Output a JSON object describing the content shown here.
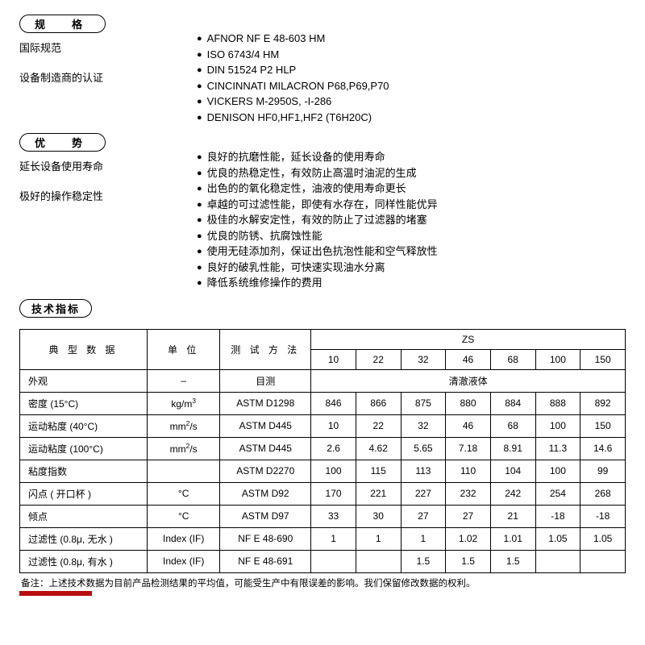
{
  "sections": {
    "spec": {
      "title": "规　格",
      "leftLabels": [
        "国际规范",
        "设备制造商的认证"
      ],
      "items": [
        "AFNOR NF E 48-603 HM",
        "ISO 6743/4 HM",
        "DIN 51524 P2 HLP",
        "CINCINNATI MILACRON P68,P69,P70",
        "VICKERS M-2950S, -I-286",
        "DENISON HF0,HF1,HF2 (T6H20C)"
      ]
    },
    "adv": {
      "title": "优　势",
      "leftLabels": [
        "延长设备使用寿命",
        "极好的操作稳定性"
      ],
      "items": [
        "良好的抗磨性能，延长设备的使用寿命",
        "优良的热稳定性，有效防止高温时油泥的生成",
        "出色的的氧化稳定性，油液的使用寿命更长",
        "卓越的可过滤性能，即使有水存在，同样性能优异",
        "极佳的水解安定性，有效的防止了过滤器的堵塞",
        "优良的防锈、抗腐蚀性能",
        "使用无硅添加剂，保证出色抗泡性能和空气释放性",
        "良好的破乳性能，可快速实现油水分离",
        "降低系统维修操作的费用"
      ]
    },
    "tech": {
      "title": "技术指标"
    }
  },
  "table": {
    "groupHeader": "ZS",
    "header": {
      "c1": "典 型 数 据",
      "c2": "单 位",
      "c3": "测 试 方 法",
      "grades": [
        "10",
        "22",
        "32",
        "46",
        "68",
        "100",
        "150"
      ]
    },
    "rows": [
      {
        "name": "外观",
        "unit": "–",
        "method": "目测",
        "merged": "清澈液体"
      },
      {
        "name": "密度 (15°C)",
        "unitHtml": "kg/m<sup>3</sup>",
        "method": "ASTM D1298",
        "v": [
          "846",
          "866",
          "875",
          "880",
          "884",
          "888",
          "892"
        ]
      },
      {
        "name": "运动粘度 (40°C)",
        "unitHtml": "mm<sup>2</sup>/s",
        "method": "ASTM D445",
        "v": [
          "10",
          "22",
          "32",
          "46",
          "68",
          "100",
          "150"
        ]
      },
      {
        "name": "运动粘度 (100°C)",
        "unitHtml": "mm<sup>2</sup>/s",
        "method": "ASTM D445",
        "v": [
          "2.6",
          "4.62",
          "5.65",
          "7.18",
          "8.91",
          "11.3",
          "14.6"
        ]
      },
      {
        "name": "粘度指数",
        "unit": "",
        "method": "ASTM D2270",
        "v": [
          "100",
          "115",
          "113",
          "110",
          "104",
          "100",
          "99"
        ]
      },
      {
        "name": "闪点 ( 开口杯 )",
        "unit": "°C",
        "method": "ASTM D92",
        "v": [
          "170",
          "221",
          "227",
          "232",
          "242",
          "254",
          "268"
        ]
      },
      {
        "name": "倾点",
        "unit": "°C",
        "method": "ASTM D97",
        "v": [
          "33",
          "30",
          "27",
          "27",
          "21",
          "-18",
          "-18"
        ]
      },
      {
        "name": "过滤性 (0.8μ, 无水 )",
        "unit": "Index (IF)",
        "method": "NF E 48-690",
        "v": [
          "1",
          "1",
          "1",
          "1.02",
          "1.01",
          "1.05",
          "1.05"
        ]
      },
      {
        "name": "过滤性 (0.8μ, 有水 )",
        "unit": "Index (IF)",
        "method": "NF E 48-691",
        "v": [
          "",
          "",
          "1.5",
          "1.5",
          "1.5",
          "",
          ""
        ]
      }
    ]
  },
  "footnote": "备注：上述技术数据为目前产品检测结果的平均值，可能受生产中有限误差的影响。我们保留修改数据的权利。",
  "colors": {
    "border": "#000000",
    "redBar": "#b80e0e",
    "background": "#ffffff"
  },
  "colWidths": {
    "c1": "21%",
    "c2": "12%",
    "c3": "15%",
    "grade": "7.4%"
  }
}
